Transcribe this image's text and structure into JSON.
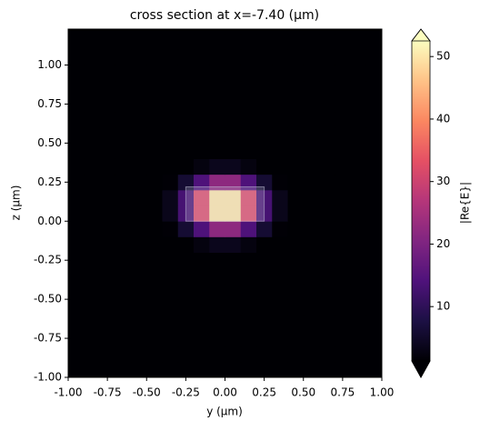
{
  "chart_data": {
    "type": "heatmap",
    "title": "cross section at x=-7.40 (μm)",
    "xlabel": "y (μm)",
    "ylabel": "z (μm)",
    "colorbar_label": "|Re{E}|",
    "colormap": "magma",
    "xlim": [
      -1,
      1
    ],
    "ylim": [
      -1,
      1.23
    ],
    "clim": [
      1.3,
      52.5
    ],
    "xticks": [
      {
        "value": -1,
        "label": "-1.00"
      },
      {
        "value": -0.75,
        "label": "-0.75"
      },
      {
        "value": -0.5,
        "label": "-0.50"
      },
      {
        "value": -0.25,
        "label": "-0.25"
      },
      {
        "value": 0,
        "label": "0.00"
      },
      {
        "value": 0.25,
        "label": "0.25"
      },
      {
        "value": 0.5,
        "label": "0.50"
      },
      {
        "value": 0.75,
        "label": "0.75"
      },
      {
        "value": 1,
        "label": "1.00"
      }
    ],
    "yticks": [
      {
        "value": -1,
        "label": "-1.00"
      },
      {
        "value": -0.75,
        "label": "-0.75"
      },
      {
        "value": -0.5,
        "label": "-0.50"
      },
      {
        "value": -0.25,
        "label": "-0.25"
      },
      {
        "value": 0,
        "label": "0.00"
      },
      {
        "value": 0.25,
        "label": "0.25"
      },
      {
        "value": 0.5,
        "label": "0.50"
      },
      {
        "value": 0.75,
        "label": "0.75"
      },
      {
        "value": 1,
        "label": "1.00"
      }
    ],
    "cticks": [
      10,
      20,
      30,
      40,
      50
    ],
    "x": [
      -0.95,
      -0.85,
      -0.75,
      -0.65,
      -0.55,
      -0.45,
      -0.35,
      -0.25,
      -0.15,
      -0.05,
      0.05,
      0.15,
      0.25,
      0.35,
      0.45,
      0.55,
      0.65,
      0.75,
      0.85,
      0.95
    ],
    "y": [
      -0.95,
      -0.85,
      -0.75,
      -0.65,
      -0.55,
      -0.45,
      -0.35,
      -0.25,
      -0.15,
      -0.05,
      0.05,
      0.15,
      0.25,
      0.35,
      0.45,
      0.55,
      0.65,
      0.75,
      0.85,
      0.95,
      1.05,
      1.15
    ],
    "z": [
      [
        0,
        0,
        0,
        0,
        0,
        0,
        0,
        0,
        0,
        0,
        0,
        0,
        0,
        0,
        0,
        0,
        0,
        0,
        0,
        0
      ],
      [
        0,
        0,
        0,
        0,
        0,
        0,
        0,
        0,
        0,
        0,
        0,
        0,
        0,
        0,
        0,
        0,
        0,
        0,
        0,
        0
      ],
      [
        0,
        0,
        0,
        0,
        0,
        0,
        0,
        0,
        0,
        0,
        0,
        0,
        0,
        0,
        0,
        0,
        0,
        0,
        0,
        0
      ],
      [
        0,
        0,
        0,
        0,
        0,
        0,
        0,
        0,
        0,
        0,
        0,
        0,
        0,
        0,
        0,
        0,
        0,
        0,
        0,
        0
      ],
      [
        0,
        0,
        0,
        0,
        0,
        0,
        0,
        0,
        0,
        0,
        0,
        0,
        0,
        0,
        0,
        0,
        0,
        0,
        0,
        0
      ],
      [
        0,
        0,
        0,
        0,
        0,
        0,
        0,
        0,
        0,
        0,
        0,
        0,
        0,
        0,
        0,
        0,
        0,
        0,
        0,
        0
      ],
      [
        0,
        0,
        0,
        0,
        0,
        0,
        0,
        0,
        0,
        0,
        0,
        0,
        0,
        0,
        0,
        0,
        0,
        0,
        0,
        0
      ],
      [
        0,
        0,
        0,
        0,
        0,
        0,
        0,
        0.1,
        0.2,
        0.3,
        0.3,
        0.2,
        0.1,
        0,
        0,
        0,
        0,
        0,
        0,
        0
      ],
      [
        0,
        0,
        0,
        0,
        0,
        0,
        0.3,
        1.0,
        2.4,
        3.7,
        3.7,
        2.4,
        1.0,
        0.3,
        0,
        0,
        0,
        0,
        0,
        0
      ],
      [
        0,
        0,
        0,
        0,
        0,
        0.2,
        1.5,
        6,
        14,
        22,
        22,
        14,
        6,
        1.5,
        0.2,
        0,
        0,
        0,
        0,
        0
      ],
      [
        0,
        0,
        0,
        0,
        0,
        0.5,
        3.5,
        13,
        32,
        50,
        50,
        32,
        13,
        3.5,
        0.5,
        0,
        0,
        0,
        0,
        0
      ],
      [
        0,
        0,
        0,
        0,
        0,
        0.5,
        3.5,
        13,
        32,
        50,
        50,
        32,
        13,
        3.5,
        0.5,
        0,
        0,
        0,
        0,
        0
      ],
      [
        0,
        0,
        0,
        0,
        0,
        0.2,
        1.5,
        6,
        14,
        22,
        22,
        14,
        6,
        1.5,
        0.2,
        0,
        0,
        0,
        0,
        0
      ],
      [
        0,
        0,
        0,
        0,
        0,
        0,
        0.3,
        1.0,
        2.4,
        3.7,
        3.7,
        2.4,
        1.0,
        0.3,
        0,
        0,
        0,
        0,
        0,
        0
      ],
      [
        0,
        0,
        0,
        0,
        0,
        0,
        0,
        0.1,
        0.2,
        0.3,
        0.3,
        0.2,
        0.1,
        0,
        0,
        0,
        0,
        0,
        0,
        0
      ],
      [
        0,
        0,
        0,
        0,
        0,
        0,
        0,
        0,
        0,
        0,
        0,
        0,
        0,
        0,
        0,
        0,
        0,
        0,
        0,
        0
      ],
      [
        0,
        0,
        0,
        0,
        0,
        0,
        0,
        0,
        0,
        0,
        0,
        0,
        0,
        0,
        0,
        0,
        0,
        0,
        0,
        0
      ],
      [
        0,
        0,
        0,
        0,
        0,
        0,
        0,
        0,
        0,
        0,
        0,
        0,
        0,
        0,
        0,
        0,
        0,
        0,
        0,
        0
      ],
      [
        0,
        0,
        0,
        0,
        0,
        0,
        0,
        0,
        0,
        0,
        0,
        0,
        0,
        0,
        0,
        0,
        0,
        0,
        0,
        0
      ],
      [
        0,
        0,
        0,
        0,
        0,
        0,
        0,
        0,
        0,
        0,
        0,
        0,
        0,
        0,
        0,
        0,
        0,
        0,
        0,
        0
      ],
      [
        0,
        0,
        0,
        0,
        0,
        0,
        0,
        0,
        0,
        0,
        0,
        0,
        0,
        0,
        0,
        0,
        0,
        0,
        0,
        0
      ],
      [
        0,
        0,
        0,
        0,
        0,
        0,
        0,
        0,
        0,
        0,
        0,
        0,
        0,
        0,
        0,
        0,
        0,
        0,
        0,
        0
      ]
    ]
  }
}
